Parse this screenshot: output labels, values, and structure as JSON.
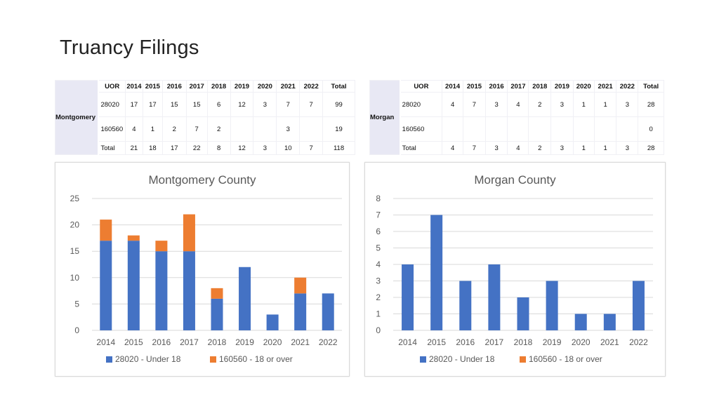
{
  "page": {
    "title": "Truancy Filings"
  },
  "tables": [
    {
      "region": "Montgomery",
      "header": [
        "UOR",
        "2014",
        "2015",
        "2016",
        "2017",
        "2018",
        "2019",
        "2020",
        "2021",
        "2022",
        "Total"
      ],
      "rows": [
        [
          "28020",
          "17",
          "17",
          "15",
          "15",
          "6",
          "12",
          "3",
          "7",
          "7",
          "99"
        ],
        [
          "160560",
          "4",
          "1",
          "2",
          "7",
          "2",
          "",
          "",
          "3",
          "",
          "19"
        ],
        [
          "Total",
          "21",
          "18",
          "17",
          "22",
          "8",
          "12",
          "3",
          "10",
          "7",
          "118"
        ]
      ]
    },
    {
      "region": "Morgan",
      "header": [
        "UOR",
        "2014",
        "2015",
        "2016",
        "2017",
        "2018",
        "2019",
        "2020",
        "2021",
        "2022",
        "Total"
      ],
      "rows": [
        [
          "28020",
          "4",
          "7",
          "3",
          "4",
          "2",
          "3",
          "1",
          "1",
          "3",
          "28"
        ],
        [
          "160560",
          "",
          "",
          "",
          "",
          "",
          "",
          "",
          "",
          "",
          "0"
        ],
        [
          "Total",
          "4",
          "7",
          "3",
          "4",
          "2",
          "3",
          "1",
          "1",
          "3",
          "28"
        ]
      ]
    }
  ],
  "colors": {
    "series1": "#4472c4",
    "series2": "#ed7d31"
  },
  "chart_data": [
    {
      "type": "bar",
      "stacked": true,
      "title": "Montgomery County",
      "categories": [
        "2014",
        "2015",
        "2016",
        "2017",
        "2018",
        "2019",
        "2020",
        "2021",
        "2022"
      ],
      "series": [
        {
          "name": "28020 - Under 18",
          "values": [
            17,
            17,
            15,
            15,
            6,
            12,
            3,
            7,
            7
          ]
        },
        {
          "name": "160560 - 18 or over",
          "values": [
            4,
            1,
            2,
            7,
            2,
            0,
            0,
            3,
            0
          ]
        }
      ],
      "ylim": [
        0,
        25
      ],
      "yticks": [
        "0",
        "5",
        "10",
        "15",
        "20",
        "25"
      ],
      "grid": true,
      "legend": "bottom"
    },
    {
      "type": "bar",
      "stacked": true,
      "title": "Morgan County",
      "categories": [
        "2014",
        "2015",
        "2016",
        "2017",
        "2018",
        "2019",
        "2020",
        "2021",
        "2022"
      ],
      "series": [
        {
          "name": "28020 - Under 18",
          "values": [
            4,
            7,
            3,
            4,
            2,
            3,
            1,
            1,
            3
          ]
        },
        {
          "name": "160560 - 18 or over",
          "values": [
            0,
            0,
            0,
            0,
            0,
            0,
            0,
            0,
            0
          ]
        }
      ],
      "ylim": [
        0,
        8
      ],
      "yticks": [
        "0",
        "1",
        "2",
        "3",
        "4",
        "5",
        "6",
        "7",
        "8"
      ],
      "grid": true,
      "legend": "bottom"
    }
  ]
}
